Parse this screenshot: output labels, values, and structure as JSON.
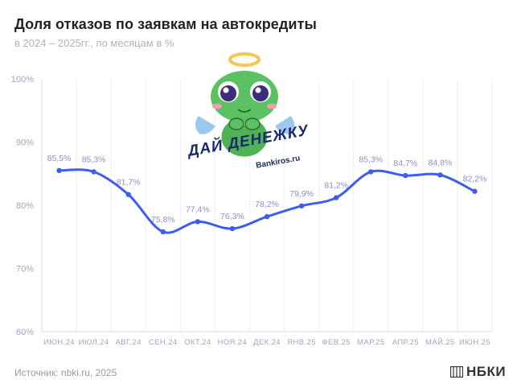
{
  "title": "Доля отказов по заявкам на автокредиты",
  "subtitle": "в 2024 – 2025гг., по месяцам в %",
  "chart_data": {
    "type": "line",
    "title": "Доля отказов по заявкам на автокредиты",
    "subtitle": "в 2024 – 2025гг., по месяцам в %",
    "xlabel": "",
    "ylabel": "",
    "ylim": [
      60,
      100
    ],
    "yticks": [
      "60%",
      "70%",
      "80%",
      "90%",
      "100%"
    ],
    "categories": [
      "ИЮН.24",
      "ИЮЛ.24",
      "АВГ.24",
      "СЕН.24",
      "ОКТ.24",
      "НОЯ.24",
      "ДЕК.24",
      "ЯНВ.25",
      "ФЕВ.25",
      "МАР.25",
      "АПР.25",
      "МАЙ.25",
      "ИЮН.25"
    ],
    "values": [
      85.5,
      85.3,
      81.7,
      75.8,
      77.4,
      76.3,
      78.2,
      79.9,
      81.2,
      85.3,
      84.7,
      84.8,
      82.2
    ],
    "data_labels": [
      "85,5%",
      "85,3%",
      "81,7%",
      "75,8%",
      "77,4%",
      "76,3%",
      "78,2%",
      "79,9%",
      "81,2%",
      "85,3%",
      "84,7%",
      "84,8%",
      "82,2%"
    ],
    "grid": "vertical-only",
    "line_color": "#3d5cf5",
    "label_color": "#8a8fc9"
  },
  "mascot": {
    "caption": "ДАЙ ДЕНЕЖКУ",
    "site": "Bankiros.ru",
    "icon": "frog-angel-icon"
  },
  "footer": {
    "source": "Источник: nbki.ru, 2025",
    "brand": "НБКИ",
    "brand_icon": "book-icon"
  }
}
